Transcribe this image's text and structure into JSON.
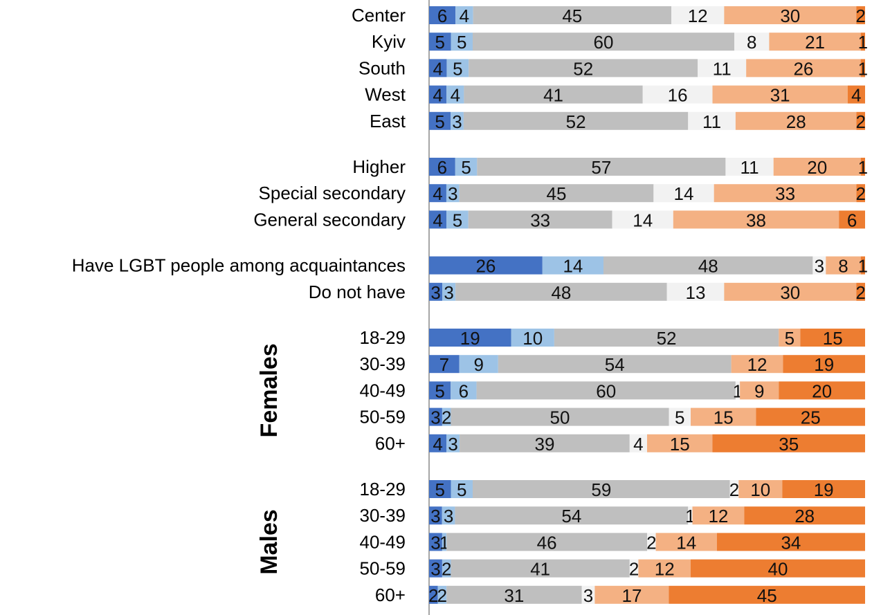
{
  "chart_data": {
    "type": "bar",
    "orientation": "horizontal",
    "stacked": true,
    "normalized": true,
    "xlim": [
      0,
      100
    ],
    "legend": "none",
    "grid": false,
    "segment_colors": [
      "#4472C4",
      "#9DC3E6",
      "#BFBFBF",
      "#F2F2F2",
      "#F4B183",
      "#ED7D31"
    ],
    "groups": [
      {
        "label": "",
        "rows": [
          {
            "label": "Center",
            "values": [
              6,
              4,
              45,
              12,
              30,
              2
            ]
          },
          {
            "label": "Kyiv",
            "values": [
              5,
              5,
              60,
              8,
              21,
              1
            ]
          },
          {
            "label": "South",
            "values": [
              4,
              5,
              52,
              11,
              26,
              1
            ]
          },
          {
            "label": "West",
            "values": [
              4,
              4,
              41,
              16,
              31,
              4
            ]
          },
          {
            "label": "East",
            "values": [
              5,
              3,
              52,
              11,
              28,
              2
            ]
          }
        ]
      },
      {
        "label": "",
        "rows": [
          {
            "label": "Higher",
            "values": [
              6,
              5,
              57,
              11,
              20,
              1
            ]
          },
          {
            "label": "Special secondary",
            "values": [
              4,
              3,
              45,
              14,
              33,
              2
            ]
          },
          {
            "label": "General secondary",
            "values": [
              4,
              5,
              33,
              14,
              38,
              6
            ]
          }
        ]
      },
      {
        "label": "",
        "rows": [
          {
            "label": "Have LGBT people among acquaintances",
            "values": [
              26,
              14,
              48,
              3,
              8,
              1
            ]
          },
          {
            "label": "Do not have",
            "values": [
              3,
              3,
              48,
              13,
              30,
              2
            ]
          }
        ]
      },
      {
        "label": "Females",
        "rows": [
          {
            "label": "18-29",
            "values": [
              19,
              10,
              52,
              0,
              5,
              15
            ]
          },
          {
            "label": "30-39",
            "values": [
              7,
              9,
              54,
              0,
              12,
              19
            ]
          },
          {
            "label": "40-49",
            "values": [
              5,
              6,
              60,
              1,
              9,
              20
            ]
          },
          {
            "label": "50-59",
            "values": [
              3,
              2,
              50,
              5,
              15,
              25
            ]
          },
          {
            "label": "60+",
            "values": [
              4,
              3,
              39,
              4,
              15,
              35
            ]
          }
        ]
      },
      {
        "label": "Males",
        "rows": [
          {
            "label": "18-29",
            "values": [
              5,
              5,
              59,
              2,
              10,
              19
            ]
          },
          {
            "label": "30-39",
            "values": [
              3,
              3,
              54,
              1,
              12,
              28
            ]
          },
          {
            "label": "40-49",
            "values": [
              3,
              1,
              46,
              2,
              14,
              34
            ]
          },
          {
            "label": "50-59",
            "values": [
              3,
              2,
              41,
              2,
              12,
              40
            ]
          },
          {
            "label": "60+",
            "values": [
              2,
              2,
              31,
              3,
              17,
              45
            ]
          }
        ]
      }
    ]
  }
}
